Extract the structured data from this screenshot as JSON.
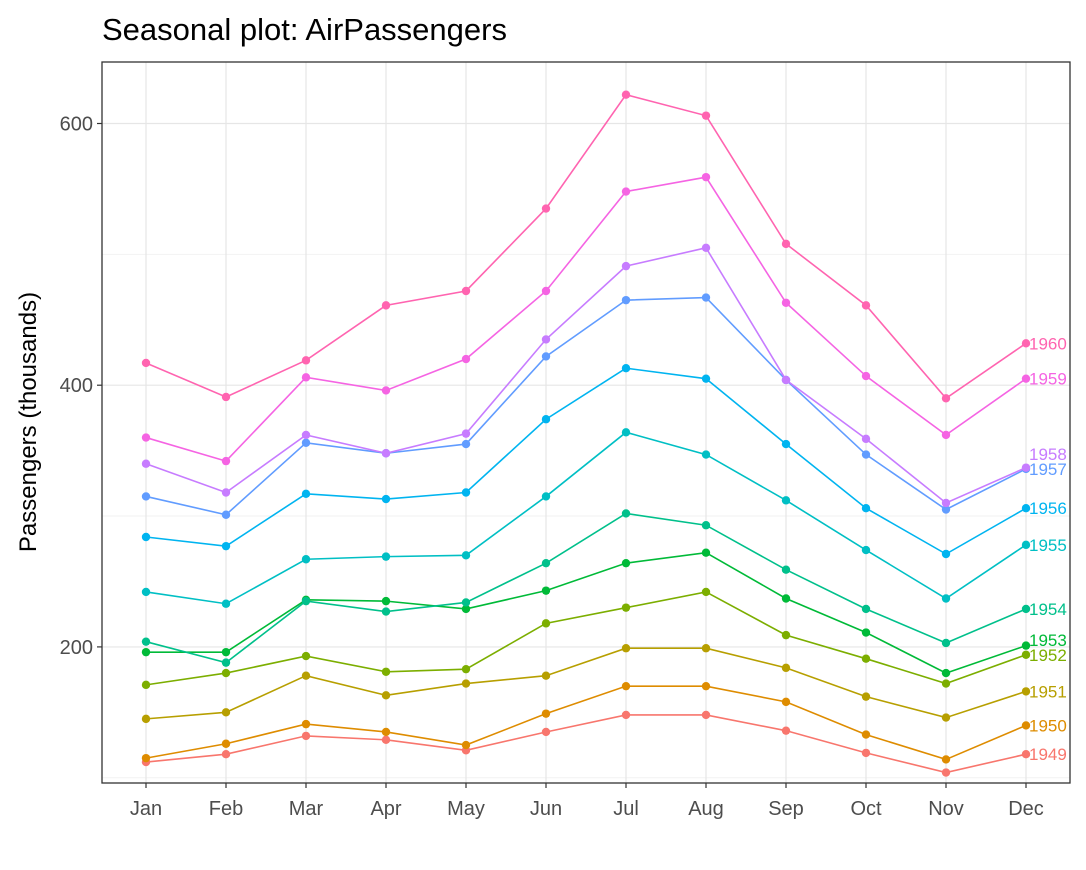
{
  "chart_data": {
    "type": "line",
    "title": "Seasonal plot: AirPassengers",
    "xlabel": "",
    "ylabel": "Passengers (thousands)",
    "categories": [
      "Jan",
      "Feb",
      "Mar",
      "Apr",
      "May",
      "Jun",
      "Jul",
      "Aug",
      "Sep",
      "Oct",
      "Nov",
      "Dec"
    ],
    "yticks": [
      200,
      400,
      600
    ],
    "ylim": [
      96,
      647
    ],
    "grid": true,
    "legend": "none; series labels printed at the right end of each line",
    "series": [
      {
        "name": "1949",
        "color": "#F8766D",
        "values": [
          112,
          118,
          132,
          129,
          121,
          135,
          148,
          148,
          136,
          119,
          104,
          118
        ]
      },
      {
        "name": "1950",
        "color": "#DE8C00",
        "values": [
          115,
          126,
          141,
          135,
          125,
          149,
          170,
          170,
          158,
          133,
          114,
          140
        ]
      },
      {
        "name": "1951",
        "color": "#B79F00",
        "values": [
          145,
          150,
          178,
          163,
          172,
          178,
          199,
          199,
          184,
          162,
          146,
          166
        ]
      },
      {
        "name": "1952",
        "color": "#7CAE00",
        "values": [
          171,
          180,
          193,
          181,
          183,
          218,
          230,
          242,
          209,
          191,
          172,
          194
        ]
      },
      {
        "name": "1953",
        "color": "#00BA38",
        "values": [
          196,
          196,
          236,
          235,
          229,
          243,
          264,
          272,
          237,
          211,
          180,
          201
        ]
      },
      {
        "name": "1954",
        "color": "#00C08B",
        "values": [
          204,
          188,
          235,
          227,
          234,
          264,
          302,
          293,
          259,
          229,
          203,
          229
        ]
      },
      {
        "name": "1955",
        "color": "#00BFC4",
        "values": [
          242,
          233,
          267,
          269,
          270,
          315,
          364,
          347,
          312,
          274,
          237,
          278
        ]
      },
      {
        "name": "1956",
        "color": "#00B4F0",
        "values": [
          284,
          277,
          317,
          313,
          318,
          374,
          413,
          405,
          355,
          306,
          271,
          306
        ]
      },
      {
        "name": "1957",
        "color": "#619CFF",
        "values": [
          315,
          301,
          356,
          348,
          355,
          422,
          465,
          467,
          404,
          347,
          305,
          336
        ]
      },
      {
        "name": "1958",
        "color": "#C77CFF",
        "values": [
          340,
          318,
          362,
          348,
          363,
          435,
          491,
          505,
          404,
          359,
          310,
          337
        ]
      },
      {
        "name": "1959",
        "color": "#F564E3",
        "values": [
          360,
          342,
          406,
          396,
          420,
          472,
          548,
          559,
          463,
          407,
          362,
          405
        ]
      },
      {
        "name": "1960",
        "color": "#FF64B0",
        "values": [
          417,
          391,
          419,
          461,
          472,
          535,
          622,
          606,
          508,
          461,
          390,
          432
        ]
      }
    ]
  }
}
